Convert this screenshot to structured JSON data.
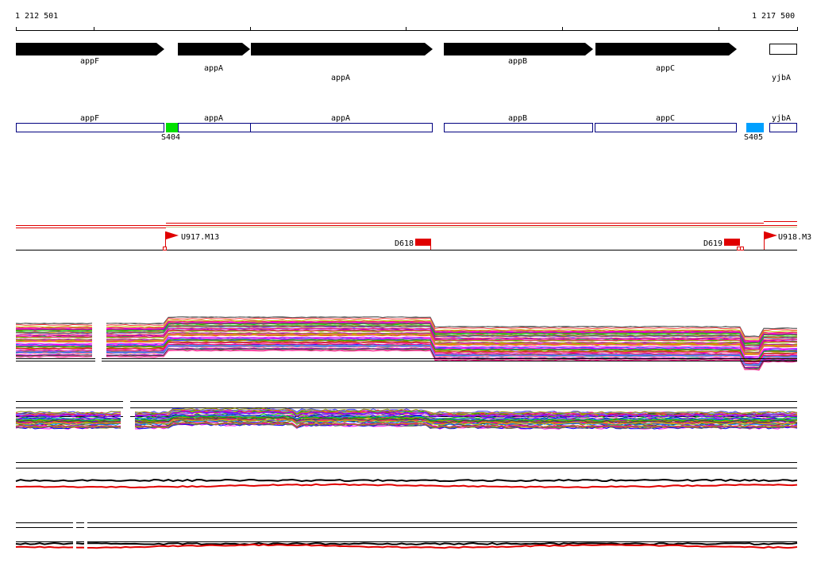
{
  "coords": {
    "start": "1 212 501",
    "end": "1 217 500"
  },
  "colors": {
    "gene_fill": "#000000",
    "annotation_stroke": "#000080",
    "feature_green": "#00e000",
    "feature_blue": "#00a0ff",
    "flag_red": "#ff0000",
    "track_red": "#e00000"
  },
  "gene_arrows": [
    {
      "name": "appF",
      "strand": "+"
    },
    {
      "name": "appA",
      "strand": "+"
    },
    {
      "name": "appA",
      "strand": "+"
    },
    {
      "name": "appB",
      "strand": "+"
    },
    {
      "name": "appC",
      "strand": "+"
    },
    {
      "name": "yjbA",
      "strand": "open"
    }
  ],
  "gene_boxes": [
    {
      "name": "appF"
    },
    {
      "name": "appA"
    },
    {
      "name": "appA"
    },
    {
      "name": "appB"
    },
    {
      "name": "appC"
    },
    {
      "name": "yjbA"
    }
  ],
  "features": [
    {
      "name": "S404",
      "color": "green"
    },
    {
      "name": "S405",
      "color": "blue"
    }
  ],
  "flags": [
    {
      "name": "U917.M13"
    },
    {
      "name": "U918.M3"
    }
  ],
  "segments": [
    {
      "name": "D618"
    },
    {
      "name": "D619"
    }
  ]
}
